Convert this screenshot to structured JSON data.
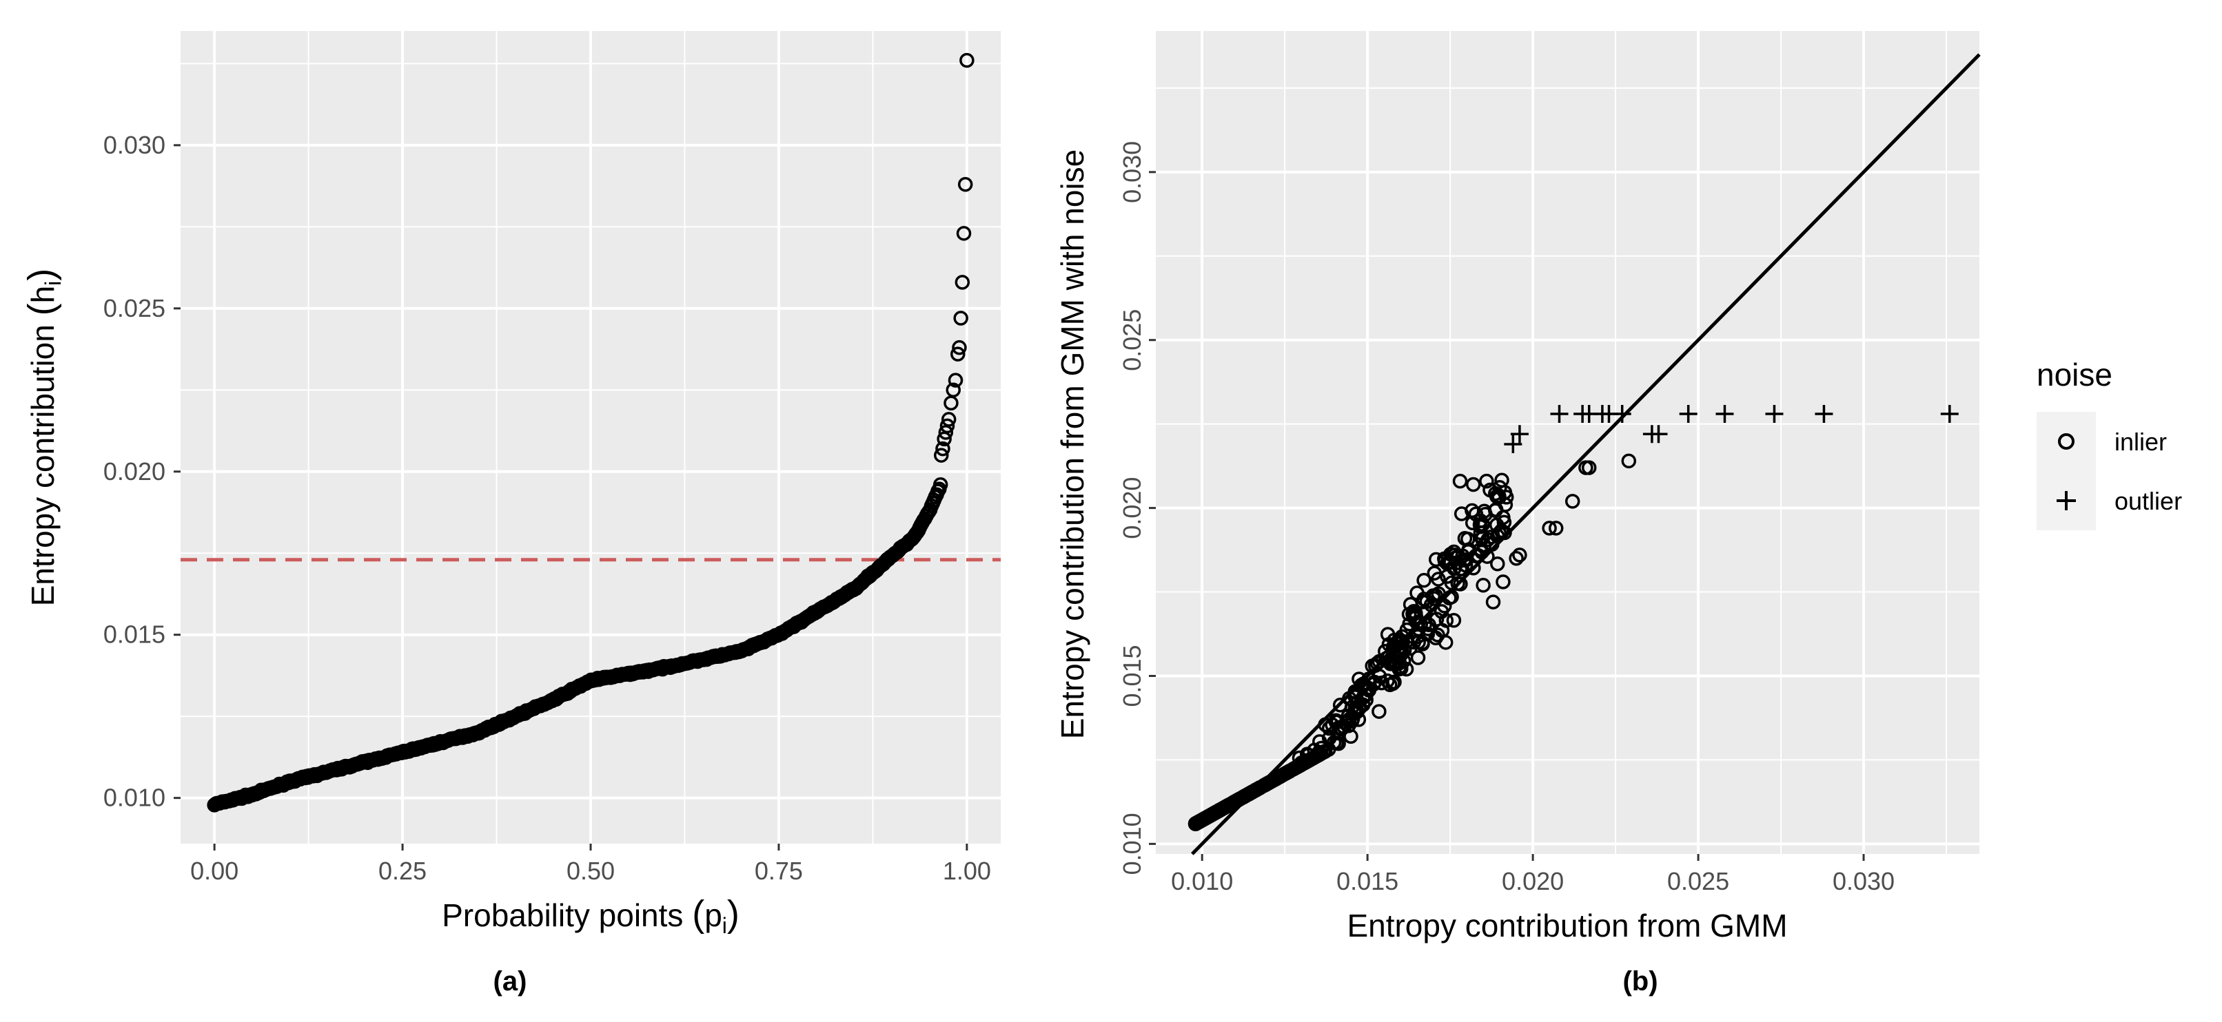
{
  "colors": {
    "panel_bg": "#EBEBEB",
    "grid_major": "#FFFFFF",
    "points": "#000000",
    "threshold_line": "#CD5C5C",
    "tick_text": "#4D4D4D",
    "legend_key_bg": "#F2F2F2"
  },
  "chart_data": [
    {
      "id": "a",
      "caption": "(a)",
      "type": "scatter",
      "title": "",
      "xlabel_main": "Probability points ",
      "xlabel_sub": "i",
      "xlabel_var": "p",
      "ylabel_main": "Entropy contribution ",
      "ylabel_sub": "i",
      "ylabel_var": "h",
      "xlim": [
        -0.045,
        1.045
      ],
      "ylim": [
        0.0086,
        0.0335
      ],
      "xticks": [
        0.0,
        0.25,
        0.5,
        0.75,
        1.0
      ],
      "xtick_labels": [
        "0.00",
        "0.25",
        "0.50",
        "0.75",
        "1.00"
      ],
      "yticks": [
        0.01,
        0.015,
        0.02,
        0.025,
        0.03
      ],
      "ytick_labels": [
        "0.010",
        "0.015",
        "0.020",
        "0.025",
        "0.030"
      ],
      "grid": true,
      "hline": {
        "y": 0.0173,
        "style": "dashed"
      },
      "curve_knots": [
        [
          0.0,
          0.0098
        ],
        [
          0.05,
          0.0101
        ],
        [
          0.1,
          0.0105
        ],
        [
          0.2,
          0.0111
        ],
        [
          0.25,
          0.0114
        ],
        [
          0.35,
          0.012
        ],
        [
          0.45,
          0.013
        ],
        [
          0.5,
          0.0136
        ],
        [
          0.55,
          0.0138
        ],
        [
          0.6,
          0.014
        ],
        [
          0.7,
          0.0145
        ],
        [
          0.75,
          0.015
        ],
        [
          0.8,
          0.0157
        ],
        [
          0.85,
          0.0164
        ],
        [
          0.9,
          0.0174
        ],
        [
          0.93,
          0.018
        ],
        [
          0.95,
          0.0188
        ],
        [
          0.96,
          0.0193
        ],
        [
          0.965,
          0.0196
        ]
      ],
      "curve_n": 560,
      "tail_points": [
        [
          0.966,
          0.0205
        ],
        [
          0.968,
          0.0207
        ],
        [
          0.97,
          0.021
        ],
        [
          0.972,
          0.0212
        ],
        [
          0.974,
          0.0214
        ],
        [
          0.976,
          0.0216
        ],
        [
          0.979,
          0.0221
        ],
        [
          0.982,
          0.0225
        ],
        [
          0.985,
          0.0228
        ],
        [
          0.988,
          0.0236
        ],
        [
          0.99,
          0.0238
        ],
        [
          0.992,
          0.0247
        ],
        [
          0.994,
          0.0258
        ],
        [
          0.996,
          0.0273
        ],
        [
          0.998,
          0.0288
        ],
        [
          1.0,
          0.0326
        ]
      ]
    },
    {
      "id": "b",
      "caption": "(b)",
      "type": "scatter",
      "title": "",
      "xlabel": "Entropy contribution from GMM",
      "ylabel": "Entropy contribution from GMM with noise",
      "xlim": [
        0.0086,
        0.0335
      ],
      "ylim": [
        0.0097,
        0.0342
      ],
      "xticks": [
        0.01,
        0.015,
        0.02,
        0.025,
        0.03
      ],
      "xtick_labels": [
        "0.010",
        "0.015",
        "0.020",
        "0.025",
        "0.030"
      ],
      "yticks": [
        0.01,
        0.015,
        0.02,
        0.025,
        0.03
      ],
      "ytick_labels": [
        "0.010",
        "0.015",
        "0.020",
        "0.025",
        "0.030"
      ],
      "grid": true,
      "reference_line": "y = x",
      "legend": {
        "title": "noise",
        "position": "right",
        "entries": [
          {
            "label": "inlier",
            "shape": "circle"
          },
          {
            "label": "outlier",
            "shape": "plus"
          }
        ]
      },
      "inlier_n": 520,
      "inlier_cloud": {
        "x_range": [
          0.0098,
          0.0192
        ],
        "slope": 1.3,
        "pivot": [
          0.0165,
          0.0165
        ],
        "spread_low": 0.0002,
        "spread_high": 0.0014
      },
      "inlier_extra": [
        [
          0.0205,
          0.0194
        ],
        [
          0.0207,
          0.0194
        ],
        [
          0.0212,
          0.0202
        ],
        [
          0.0216,
          0.0212
        ],
        [
          0.0217,
          0.0212
        ],
        [
          0.0229,
          0.0214
        ],
        [
          0.0186,
          0.0208
        ],
        [
          0.0182,
          0.0207
        ],
        [
          0.0178,
          0.0208
        ],
        [
          0.0195,
          0.0185
        ],
        [
          0.0196,
          0.0186
        ],
        [
          0.0185,
          0.0177
        ],
        [
          0.0188,
          0.0172
        ],
        [
          0.0191,
          0.0178
        ]
      ],
      "outliers": [
        [
          0.0194,
          0.0219
        ],
        [
          0.0196,
          0.0222
        ],
        [
          0.0208,
          0.0228
        ],
        [
          0.0215,
          0.0228
        ],
        [
          0.0217,
          0.0228
        ],
        [
          0.0221,
          0.0228
        ],
        [
          0.0223,
          0.0228
        ],
        [
          0.0227,
          0.0228
        ],
        [
          0.0236,
          0.0222
        ],
        [
          0.0238,
          0.0222
        ],
        [
          0.0247,
          0.0228
        ],
        [
          0.0258,
          0.0228
        ],
        [
          0.0273,
          0.0228
        ],
        [
          0.0288,
          0.0228
        ],
        [
          0.0326,
          0.0228
        ]
      ]
    }
  ]
}
